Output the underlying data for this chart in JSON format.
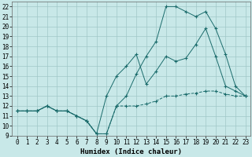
{
  "xlabel": "Humidex (Indice chaleur)",
  "bg_color": "#c8e8e8",
  "grid_color": "#a0c8c8",
  "line_color": "#1a6b6b",
  "xlim": [
    -0.5,
    23.5
  ],
  "ylim": [
    9.0,
    22.5
  ],
  "yticks": [
    9,
    10,
    11,
    12,
    13,
    14,
    15,
    16,
    17,
    18,
    19,
    20,
    21,
    22
  ],
  "xticks": [
    0,
    1,
    2,
    3,
    4,
    5,
    6,
    7,
    8,
    9,
    10,
    11,
    12,
    13,
    14,
    15,
    16,
    17,
    18,
    19,
    20,
    21,
    22,
    23
  ],
  "line1_x": [
    0,
    1,
    2,
    3,
    4,
    5,
    6,
    7,
    8,
    9,
    10,
    11,
    12,
    13,
    14,
    15,
    16,
    17,
    18,
    19,
    20,
    21,
    22,
    23
  ],
  "line1_y": [
    11.5,
    11.5,
    11.5,
    12.0,
    11.5,
    11.5,
    11.0,
    10.5,
    9.2,
    9.2,
    12.0,
    12.0,
    12.0,
    12.2,
    12.5,
    13.0,
    13.0,
    13.2,
    13.3,
    13.5,
    13.5,
    13.2,
    13.0,
    13.0
  ],
  "line2_x": [
    0,
    1,
    2,
    3,
    4,
    5,
    6,
    7,
    8,
    9,
    10,
    11,
    12,
    13,
    14,
    15,
    16,
    17,
    18,
    19,
    20,
    21,
    22,
    23
  ],
  "line2_y": [
    11.5,
    11.5,
    11.5,
    12.0,
    11.5,
    11.5,
    11.0,
    10.5,
    9.2,
    13.0,
    15.0,
    16.0,
    17.2,
    14.2,
    15.5,
    17.0,
    16.5,
    16.8,
    18.2,
    19.8,
    17.0,
    14.0,
    13.5,
    13.0
  ],
  "line3_x": [
    0,
    1,
    2,
    3,
    4,
    5,
    6,
    7,
    8,
    9,
    10,
    11,
    12,
    13,
    14,
    15,
    16,
    17,
    18,
    19,
    20,
    21,
    22,
    23
  ],
  "line3_y": [
    11.5,
    11.5,
    11.5,
    12.0,
    11.5,
    11.5,
    11.0,
    10.5,
    9.2,
    9.2,
    12.0,
    13.0,
    15.2,
    17.0,
    18.5,
    22.0,
    22.0,
    21.5,
    21.0,
    21.5,
    19.8,
    17.2,
    14.0,
    13.0
  ],
  "tick_fontsize": 5.5,
  "xlabel_fontsize": 6.5,
  "xlabel_fontweight": "bold"
}
